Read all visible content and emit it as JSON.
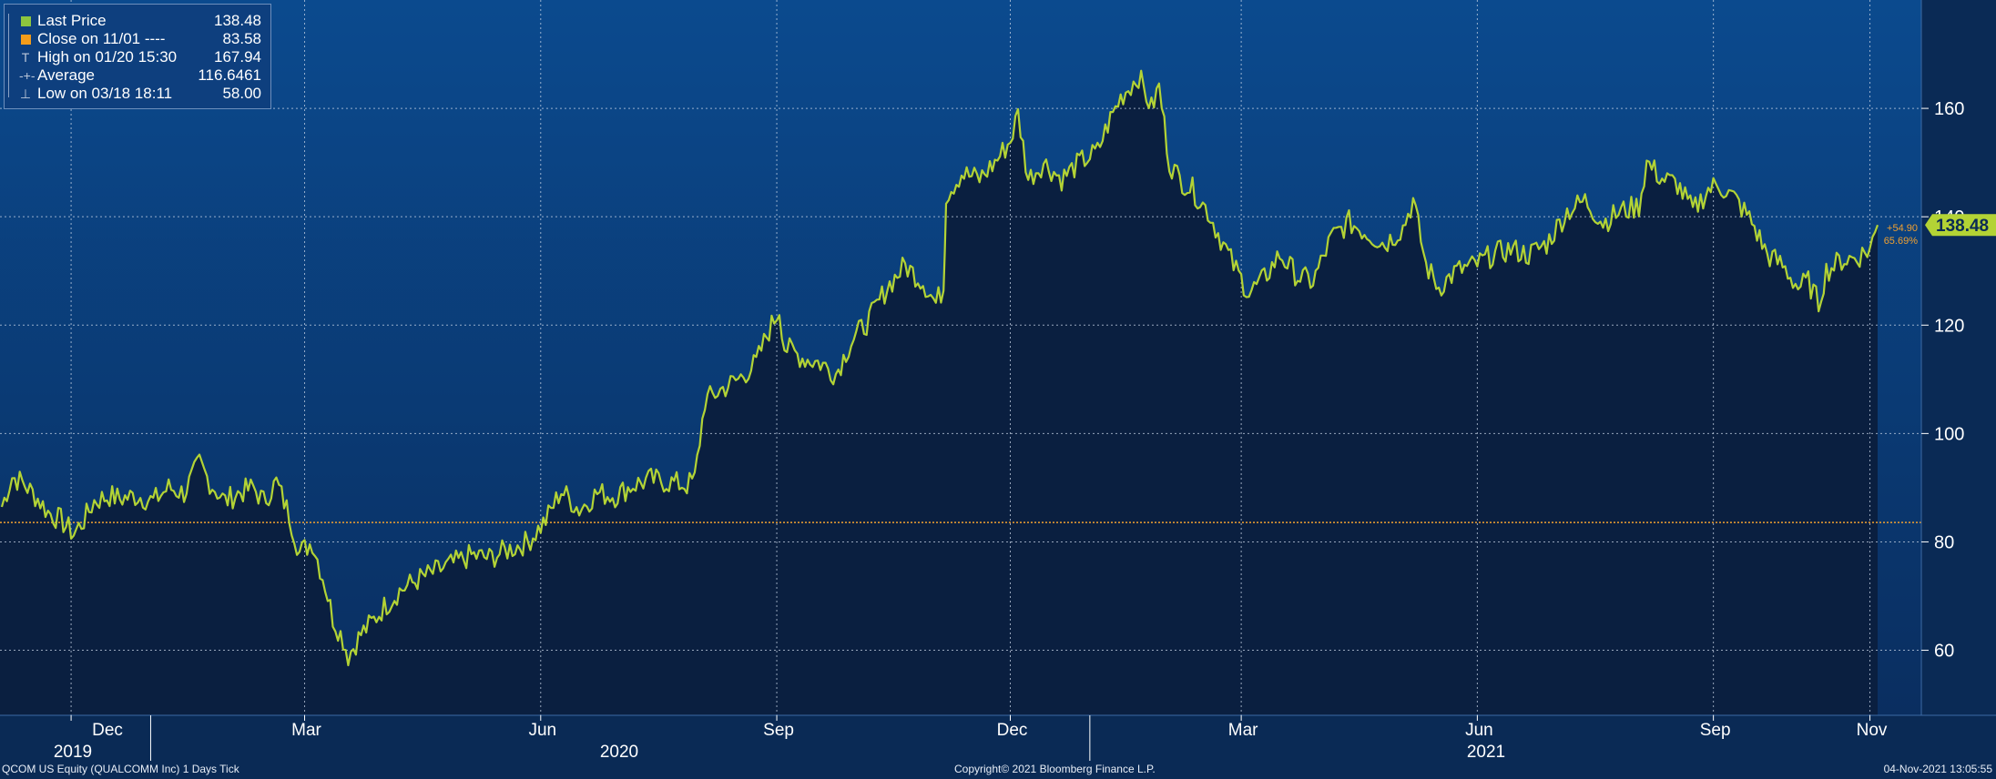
{
  "chart_data": {
    "type": "area",
    "security": "QCOM US Equity (QUALCOMM Inc) 1 Days Tick",
    "ylim": [
      48,
      180
    ],
    "yticks": [
      60,
      80,
      100,
      120,
      140,
      160
    ],
    "x_months": [
      "Dec",
      "Mar",
      "Jun",
      "Sep",
      "Dec",
      "Mar",
      "Jun",
      "Sep",
      "Nov"
    ],
    "x_years": [
      "2019",
      "2020",
      "2021"
    ],
    "series": [
      {
        "name": "Last Price",
        "color": "#b3d335",
        "points": [
          [
            "2019-11-04",
            86.5
          ],
          [
            "2019-11-08",
            92.0
          ],
          [
            "2019-11-12",
            91.0
          ],
          [
            "2019-11-18",
            88.0
          ],
          [
            "2019-11-22",
            85.5
          ],
          [
            "2019-11-27",
            84.0
          ],
          [
            "2019-12-02",
            81.5
          ],
          [
            "2019-12-06",
            84.0
          ],
          [
            "2019-12-10",
            87.5
          ],
          [
            "2019-12-16",
            88.5
          ],
          [
            "2019-12-20",
            88.0
          ],
          [
            "2019-12-27",
            88.5
          ],
          [
            "2020-01-02",
            87.5
          ],
          [
            "2020-01-08",
            90.0
          ],
          [
            "2020-01-14",
            89.0
          ],
          [
            "2020-01-20",
            94.5
          ],
          [
            "2020-01-24",
            91.0
          ],
          [
            "2020-01-30",
            87.5
          ],
          [
            "2020-02-04",
            89.0
          ],
          [
            "2020-02-10",
            90.0
          ],
          [
            "2020-02-14",
            87.5
          ],
          [
            "2020-02-19",
            91.0
          ],
          [
            "2020-02-24",
            85.0
          ],
          [
            "2020-02-28",
            78.0
          ],
          [
            "2020-03-04",
            80.0
          ],
          [
            "2020-03-09",
            72.0
          ],
          [
            "2020-03-12",
            66.0
          ],
          [
            "2020-03-16",
            62.0
          ],
          [
            "2020-03-18",
            59.0
          ],
          [
            "2020-03-23",
            63.0
          ],
          [
            "2020-03-27",
            65.0
          ],
          [
            "2020-04-01",
            68.0
          ],
          [
            "2020-04-07",
            71.0
          ],
          [
            "2020-04-14",
            73.0
          ],
          [
            "2020-04-21",
            74.5
          ],
          [
            "2020-04-28",
            76.0
          ],
          [
            "2020-05-05",
            77.5
          ],
          [
            "2020-05-12",
            77.0
          ],
          [
            "2020-05-19",
            78.5
          ],
          [
            "2020-05-27",
            80.0
          ],
          [
            "2020-06-03",
            84.0
          ],
          [
            "2020-06-09",
            89.5
          ],
          [
            "2020-06-16",
            86.0
          ],
          [
            "2020-06-23",
            89.0
          ],
          [
            "2020-06-30",
            88.5
          ],
          [
            "2020-07-07",
            90.5
          ],
          [
            "2020-07-14",
            91.5
          ],
          [
            "2020-07-21",
            91.0
          ],
          [
            "2020-07-28",
            90.5
          ],
          [
            "2020-07-31",
            91.5
          ],
          [
            "2020-08-04",
            106.0
          ],
          [
            "2020-08-10",
            108.0
          ],
          [
            "2020-08-17",
            110.0
          ],
          [
            "2020-08-24",
            113.0
          ],
          [
            "2020-08-28",
            118.0
          ],
          [
            "2020-09-02",
            123.0
          ],
          [
            "2020-09-04",
            116.0
          ],
          [
            "2020-09-11",
            114.0
          ],
          [
            "2020-09-18",
            113.0
          ],
          [
            "2020-09-24",
            111.0
          ],
          [
            "2020-09-30",
            117.0
          ],
          [
            "2020-10-07",
            121.0
          ],
          [
            "2020-10-14",
            127.0
          ],
          [
            "2020-10-21",
            131.0
          ],
          [
            "2020-10-28",
            128.0
          ],
          [
            "2020-11-02",
            124.0
          ],
          [
            "2020-11-05",
            127.0
          ],
          [
            "2020-11-06",
            144.0
          ],
          [
            "2020-11-12",
            148.0
          ],
          [
            "2020-11-19",
            147.0
          ],
          [
            "2020-11-25",
            150.0
          ],
          [
            "2020-12-01",
            154.0
          ],
          [
            "2020-12-04",
            159.0
          ],
          [
            "2020-12-08",
            147.0
          ],
          [
            "2020-12-14",
            150.0
          ],
          [
            "2020-12-21",
            147.0
          ],
          [
            "2020-12-28",
            150.0
          ],
          [
            "2021-01-04",
            152.0
          ],
          [
            "2021-01-08",
            157.0
          ],
          [
            "2021-01-13",
            162.0
          ],
          [
            "2021-01-20",
            166.0
          ],
          [
            "2021-01-25",
            160.0
          ],
          [
            "2021-01-28",
            164.0
          ],
          [
            "2021-02-01",
            150.0
          ],
          [
            "2021-02-05",
            147.0
          ],
          [
            "2021-02-10",
            145.0
          ],
          [
            "2021-02-16",
            141.0
          ],
          [
            "2021-02-22",
            135.0
          ],
          [
            "2021-02-26",
            131.0
          ],
          [
            "2021-03-04",
            126.0
          ],
          [
            "2021-03-09",
            128.0
          ],
          [
            "2021-03-16",
            133.0
          ],
          [
            "2021-03-23",
            129.0
          ],
          [
            "2021-03-29",
            128.0
          ],
          [
            "2021-04-05",
            136.0
          ],
          [
            "2021-04-12",
            139.0
          ],
          [
            "2021-04-19",
            137.0
          ],
          [
            "2021-04-26",
            135.0
          ],
          [
            "2021-05-03",
            138.0
          ],
          [
            "2021-05-07",
            143.0
          ],
          [
            "2021-05-12",
            131.0
          ],
          [
            "2021-05-17",
            127.0
          ],
          [
            "2021-05-24",
            130.0
          ],
          [
            "2021-05-31",
            131.0
          ],
          [
            "2021-06-07",
            133.0
          ],
          [
            "2021-06-14",
            134.0
          ],
          [
            "2021-06-21",
            133.0
          ],
          [
            "2021-06-28",
            135.0
          ],
          [
            "2021-07-06",
            141.0
          ],
          [
            "2021-07-13",
            143.0
          ],
          [
            "2021-07-20",
            139.0
          ],
          [
            "2021-07-27",
            141.0
          ],
          [
            "2021-08-03",
            142.0
          ],
          [
            "2021-08-06",
            150.0
          ],
          [
            "2021-08-12",
            147.0
          ],
          [
            "2021-08-18",
            146.0
          ],
          [
            "2021-08-24",
            141.0
          ],
          [
            "2021-08-30",
            145.0
          ],
          [
            "2021-09-03",
            146.0
          ],
          [
            "2021-09-10",
            143.0
          ],
          [
            "2021-09-16",
            139.0
          ],
          [
            "2021-09-22",
            133.0
          ],
          [
            "2021-09-28",
            131.0
          ],
          [
            "2021-10-04",
            127.0
          ],
          [
            "2021-10-08",
            128.0
          ],
          [
            "2021-10-12",
            124.0
          ],
          [
            "2021-10-15",
            130.0
          ],
          [
            "2021-10-21",
            132.0
          ],
          [
            "2021-10-27",
            132.5
          ],
          [
            "2021-11-01",
            134.0
          ],
          [
            "2021-11-04",
            138.48
          ]
        ]
      }
    ],
    "reference_line": {
      "name": "Close on 11/01",
      "value": 83.58,
      "color": "#f0a030"
    },
    "last_price_label": "138.48",
    "change_abs": "+54.90",
    "change_pct": "65.69%",
    "grid": true,
    "legend_placement": "top-left"
  },
  "legend": [
    {
      "label": "Last Price",
      "value": "138.48",
      "swatch": "#8dc63f",
      "glyph": ""
    },
    {
      "label": "Close on 11/01 ----",
      "value": "83.58",
      "swatch": "#f39c1a",
      "glyph": ""
    },
    {
      "label": "High on 01/20 15:30",
      "value": "167.94",
      "swatch": "",
      "glyph": "T"
    },
    {
      "label": "Average",
      "value": "116.6461",
      "swatch": "",
      "glyph": "-+-"
    },
    {
      "label": "Low on 03/18 18:11",
      "value": "58.00",
      "swatch": "",
      "glyph": "⊥"
    }
  ],
  "footer": {
    "left": "QCOM US Equity (QUALCOMM Inc) 1 Days  Tick",
    "center": "Copyright© 2021 Bloomberg Finance L.P.",
    "right": "04-Nov-2021 13:05:55"
  },
  "colors": {
    "background": "#0a2a55",
    "plot_gradient_top": "#0b4a8e",
    "plot_gradient_bottom": "#0a2c5c",
    "area_fill": "#0a1f40",
    "line": "#b3d335",
    "grid": "#c8d4e6",
    "label_bg": "#b3d335"
  }
}
